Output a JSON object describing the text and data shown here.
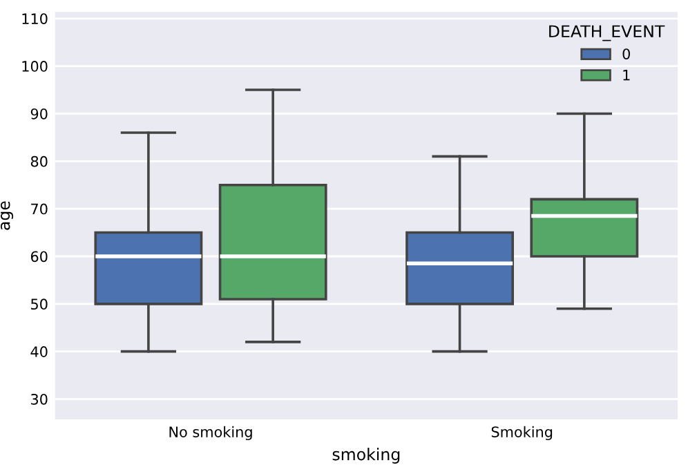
{
  "chart_data": {
    "type": "box",
    "xlabel": "smoking",
    "ylabel": "age",
    "legend_title": "DEATH_EVENT",
    "categories": [
      "No smoking",
      "Smoking"
    ],
    "series": [
      {
        "name": "0",
        "color": "#4c72b0",
        "boxes": [
          {
            "low": 40,
            "q1": 50,
            "median": 60,
            "q3": 65,
            "high": 86
          },
          {
            "low": 40,
            "q1": 50,
            "median": 58.5,
            "q3": 65,
            "high": 81
          }
        ]
      },
      {
        "name": "1",
        "color": "#55a868",
        "boxes": [
          {
            "low": 42,
            "q1": 51,
            "median": 60,
            "q3": 75,
            "high": 95
          },
          {
            "low": 49,
            "q1": 60,
            "median": 68.5,
            "q3": 72,
            "high": 90
          }
        ]
      }
    ],
    "ylim": [
      25.7,
      111.4
    ],
    "yticks": [
      30,
      40,
      50,
      60,
      70,
      80,
      90,
      100,
      110
    ],
    "grid": "y",
    "legend": "top right"
  }
}
